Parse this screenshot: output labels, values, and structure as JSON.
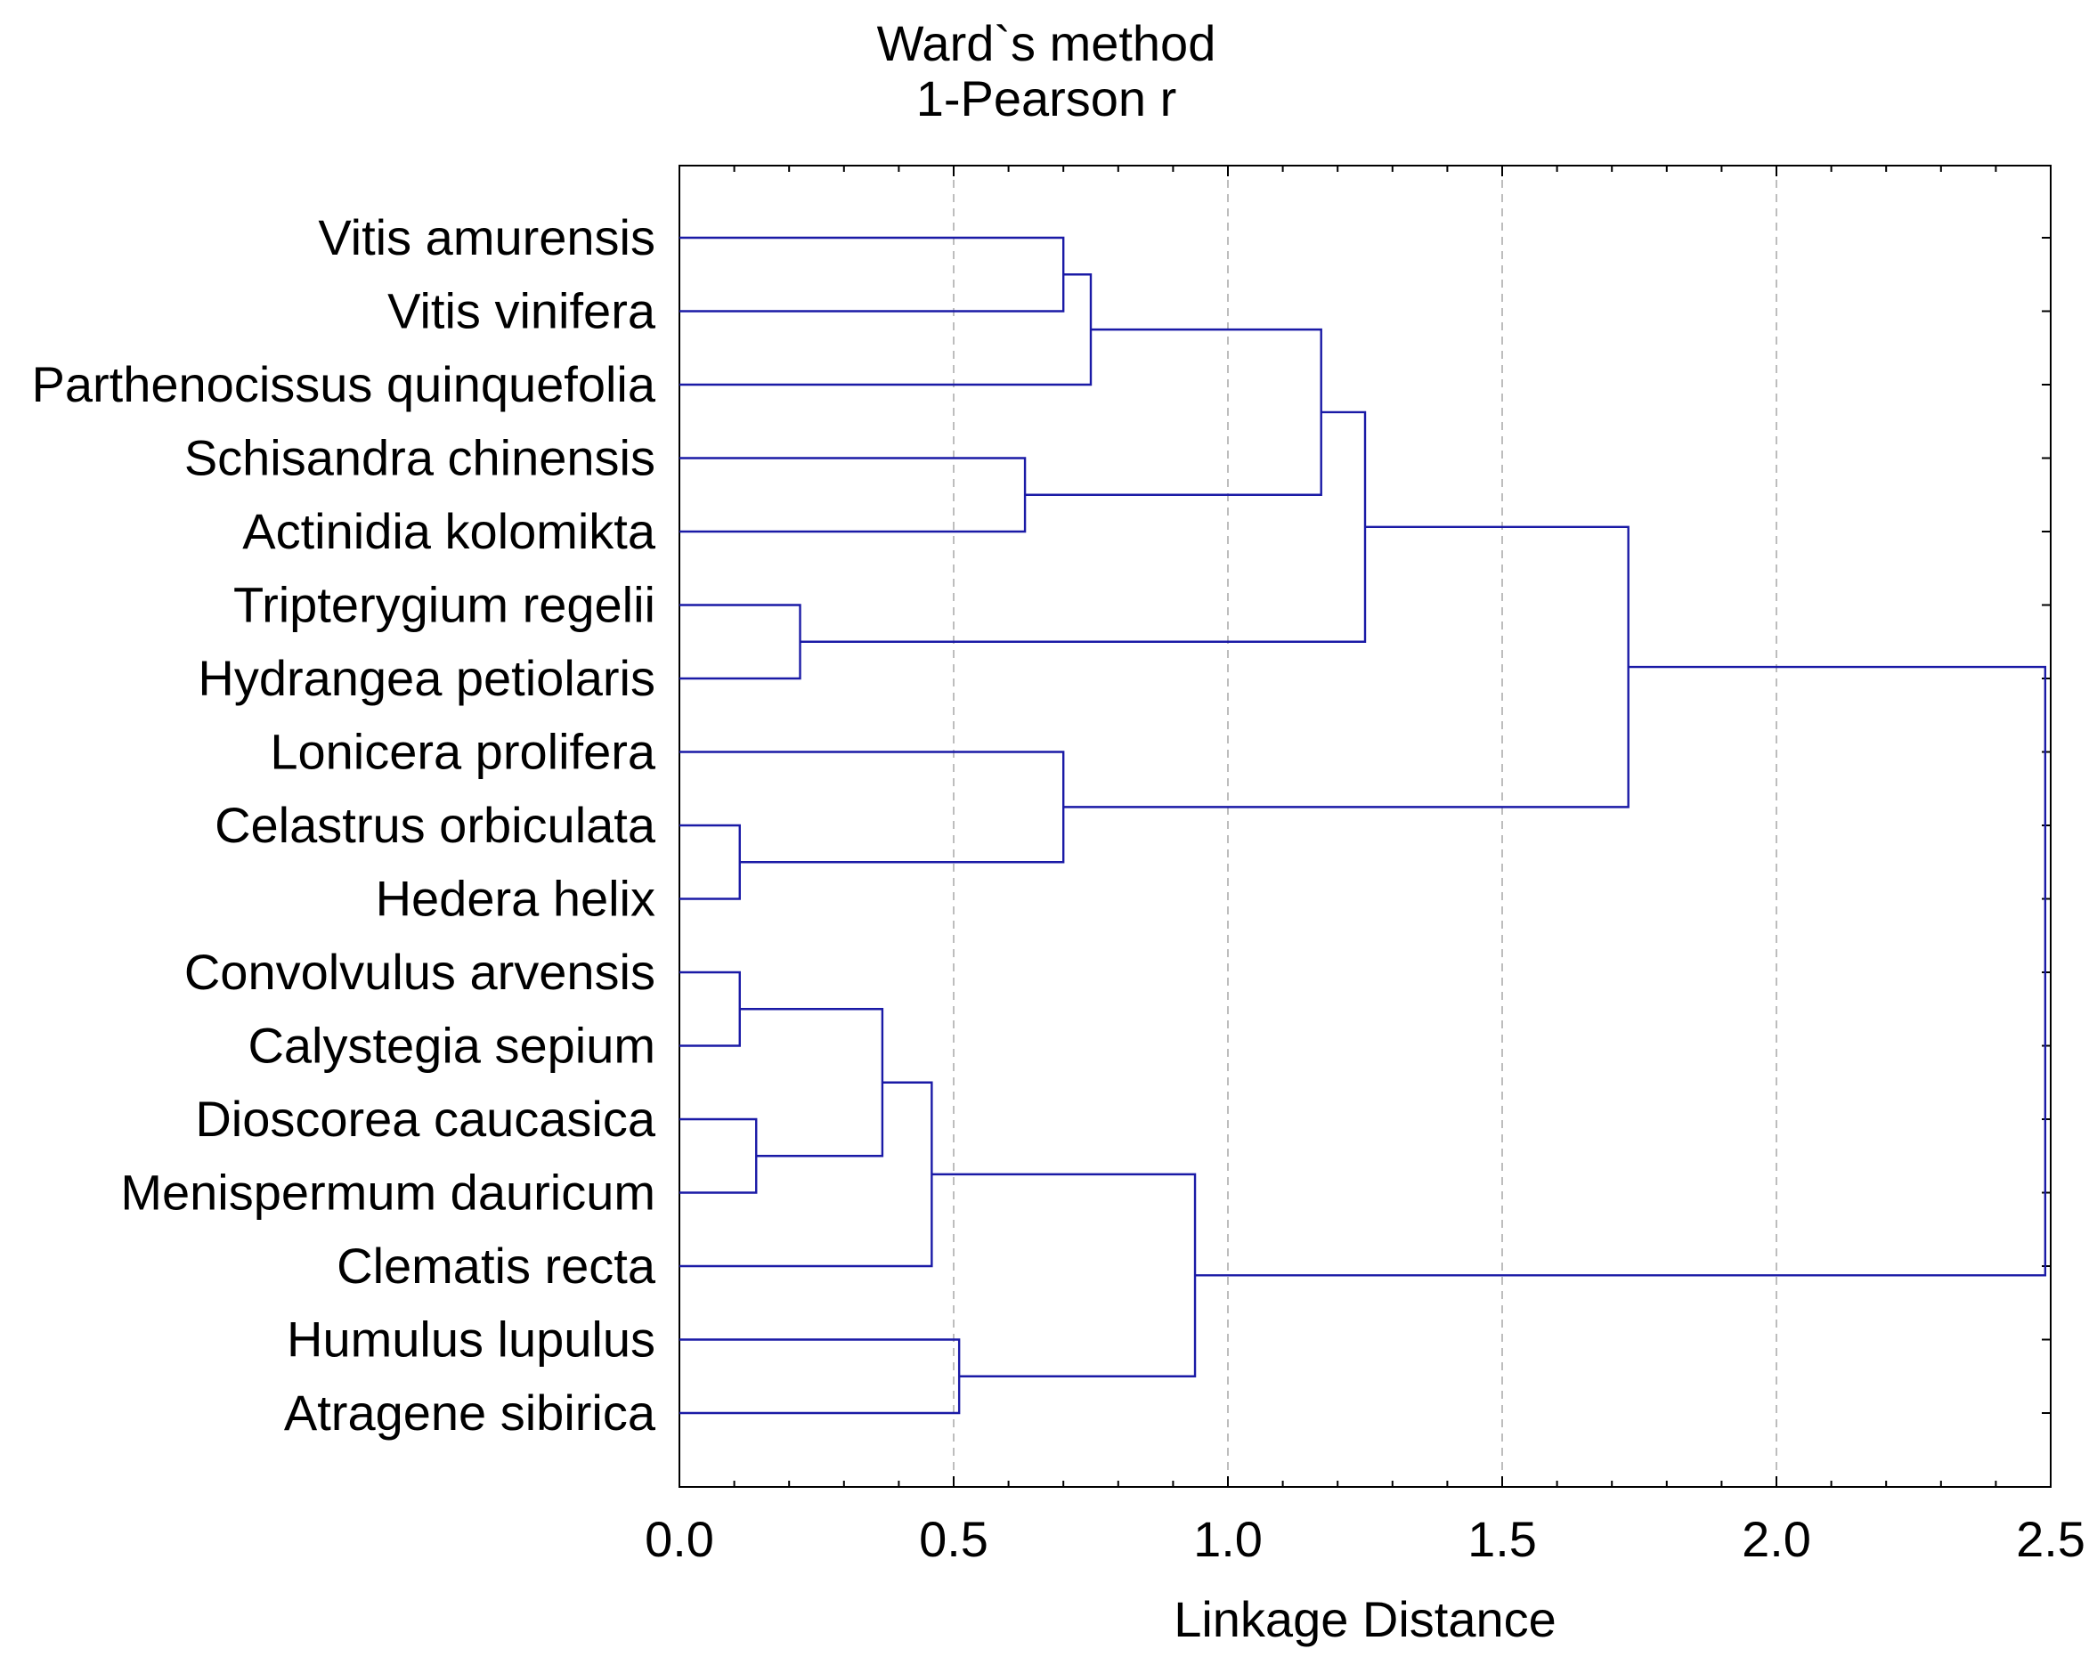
{
  "chart_data": {
    "type": "dendrogram",
    "title_lines": [
      "Ward`s method",
      "1-Pearson r"
    ],
    "xlabel": "Linkage Distance",
    "xlim": [
      0.0,
      2.5
    ],
    "xticks": [
      "0.0",
      "0.5",
      "1.0",
      "1.5",
      "2.0",
      "2.5"
    ],
    "grid": "vertical dashed",
    "leaves": [
      "Vitis amurensis",
      "Vitis vinifera",
      "Parthenocissus quinquefolia",
      "Schisandra chinensis",
      "Actinidia kolomikta",
      "Tripterygium regelii",
      "Hydrangea petiolaris",
      "Lonicera prolifera",
      "Celastrus orbiculata",
      "Hedera helix",
      "Convolvulus arvensis",
      "Calystegia sepium",
      "Dioscorea caucasica",
      "Menispermum dauricum",
      "Clematis recta",
      "Humulus lupulus",
      "Atragene sibirica"
    ],
    "merges": [
      {
        "id": "m1",
        "left": "Vitis amurensis",
        "right": "Vitis vinifera",
        "distance": 0.7
      },
      {
        "id": "m2",
        "left": "m1",
        "right": "Parthenocissus quinquefolia",
        "distance": 0.75
      },
      {
        "id": "m3",
        "left": "Schisandra chinensis",
        "right": "Actinidia kolomikta",
        "distance": 0.63
      },
      {
        "id": "m4",
        "left": "m2",
        "right": "m3",
        "distance": 1.17
      },
      {
        "id": "m5",
        "left": "Tripterygium regelii",
        "right": "Hydrangea petiolaris",
        "distance": 0.22
      },
      {
        "id": "m6",
        "left": "m4",
        "right": "m5",
        "distance": 1.25
      },
      {
        "id": "m7",
        "left": "Celastrus orbiculata",
        "right": "Hedera helix",
        "distance": 0.11
      },
      {
        "id": "m8",
        "left": "Lonicera prolifera",
        "right": "m7",
        "distance": 0.7
      },
      {
        "id": "m9",
        "left": "m6",
        "right": "m8",
        "distance": 1.73
      },
      {
        "id": "m10",
        "left": "Convolvulus arvensis",
        "right": "Calystegia sepium",
        "distance": 0.11
      },
      {
        "id": "m11",
        "left": "Dioscorea caucasica",
        "right": "Menispermum dauricum",
        "distance": 0.14
      },
      {
        "id": "m12",
        "left": "m10",
        "right": "m11",
        "distance": 0.37
      },
      {
        "id": "m13",
        "left": "m12",
        "right": "Clematis recta",
        "distance": 0.46
      },
      {
        "id": "m14",
        "left": "Humulus lupulus",
        "right": "Atragene sibirica",
        "distance": 0.51
      },
      {
        "id": "m15",
        "left": "m13",
        "right": "m14",
        "distance": 0.94
      },
      {
        "id": "m16",
        "left": "m9",
        "right": "m15",
        "distance": 2.49
      }
    ]
  }
}
